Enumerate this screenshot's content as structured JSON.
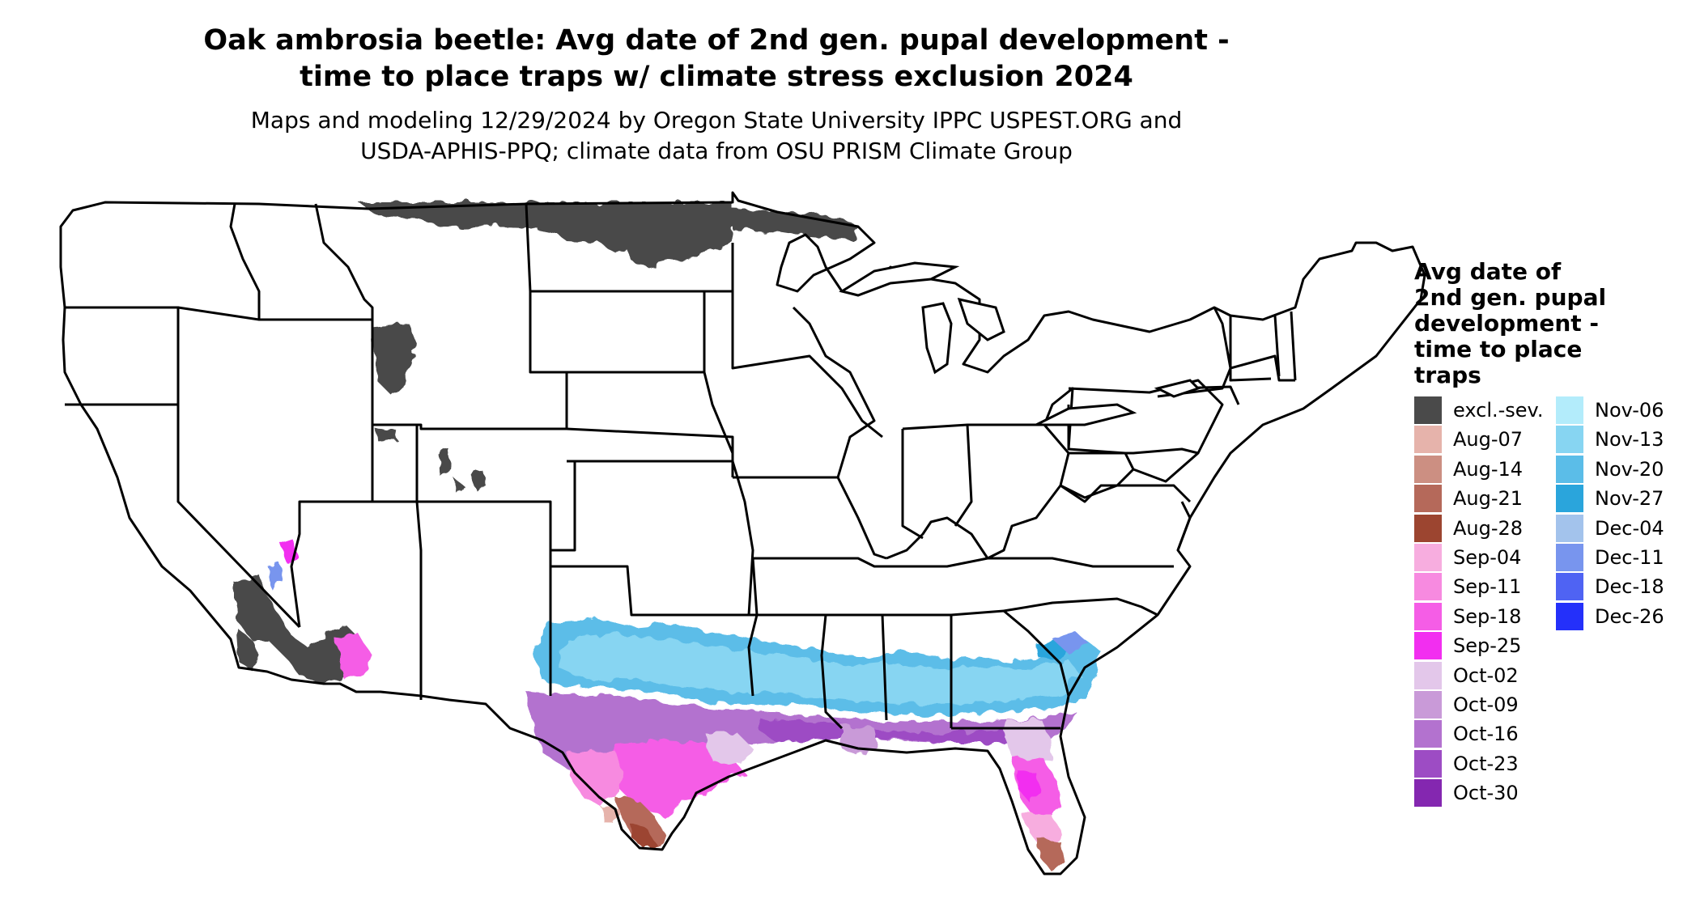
{
  "title_line1": "Oak ambrosia beetle: Avg date of 2nd gen. pupal development -",
  "title_line2": "time to place traps w/ climate stress exclusion 2024",
  "subtitle_line1": "Maps and modeling 12/29/2024 by Oregon State University IPPC USPEST.ORG and",
  "subtitle_line2": "USDA-APHIS-PPQ; climate data from OSU PRISM Climate Group",
  "legend": {
    "title_lines": [
      "Avg date of",
      "2nd gen. pupal",
      "development -",
      "time to place",
      "traps"
    ],
    "items": [
      {
        "label": "excl.-sev.",
        "color": "#4a4a4a"
      },
      {
        "label": "Aug-07",
        "color": "#e6b3ab"
      },
      {
        "label": "Aug-14",
        "color": "#cc8f82"
      },
      {
        "label": "Aug-21",
        "color": "#b5695a"
      },
      {
        "label": "Aug-28",
        "color": "#9c4530"
      },
      {
        "label": "Sep-04",
        "color": "#f7addf"
      },
      {
        "label": "Sep-11",
        "color": "#f78ae0"
      },
      {
        "label": "Sep-18",
        "color": "#f55de6"
      },
      {
        "label": "Sep-25",
        "color": "#f22ef0"
      },
      {
        "label": "Oct-02",
        "color": "#e3c7ea"
      },
      {
        "label": "Oct-09",
        "color": "#c99ad8"
      },
      {
        "label": "Oct-16",
        "color": "#b372cf"
      },
      {
        "label": "Oct-23",
        "color": "#9d4cc4"
      },
      {
        "label": "Oct-30",
        "color": "#8427b0"
      },
      {
        "label": "Nov-06",
        "color": "#b3ecfb"
      },
      {
        "label": "Nov-13",
        "color": "#87d5f2"
      },
      {
        "label": "Nov-20",
        "color": "#5bbde8"
      },
      {
        "label": "Nov-27",
        "color": "#2aa5dc"
      },
      {
        "label": "Dec-04",
        "color": "#a3c3ec"
      },
      {
        "label": "Dec-11",
        "color": "#7895ee"
      },
      {
        "label": "Dec-18",
        "color": "#4f63f3"
      },
      {
        "label": "Dec-26",
        "color": "#2430fa"
      }
    ]
  }
}
